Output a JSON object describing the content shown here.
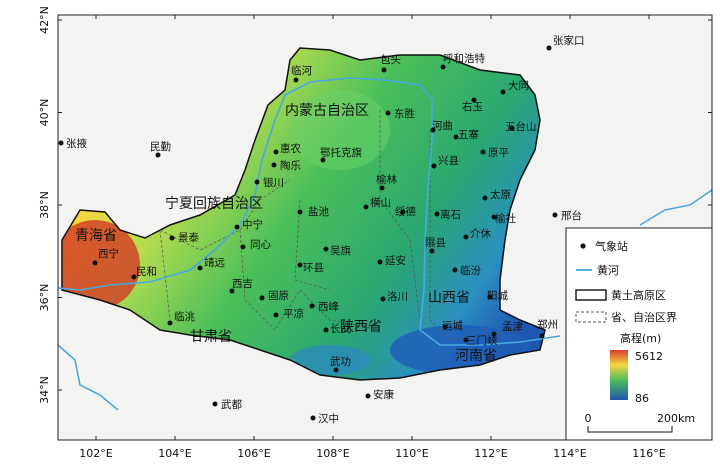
{
  "map": {
    "regions": [
      "内蒙古自治区",
      "宁夏回族自治区",
      "青海省",
      "甘肃省",
      "陕西省",
      "山西省",
      "河南省"
    ],
    "stations": [
      "张家口",
      "包头",
      "呼和浩特",
      "临河",
      "大同",
      "右玉",
      "东胜",
      "河曲",
      "五寨",
      "五台山",
      "张掖",
      "民勤",
      "惠农",
      "陶乐",
      "鄂托克旗",
      "兴县",
      "原平",
      "银川",
      "榆林",
      "太原",
      "盐池",
      "横山",
      "绥德",
      "离石",
      "榆社",
      "邢台",
      "中宁",
      "景泰",
      "同心",
      "吴旗",
      "隰县",
      "介休",
      "西宁",
      "民和",
      "靖远",
      "环县",
      "延安",
      "临汾",
      "西吉",
      "固原",
      "洛川",
      "阳城",
      "西峰",
      "平凉",
      "临洮",
      "长武",
      "运城",
      "孟津",
      "郑州",
      "三门峡",
      "武功",
      "安康",
      "武都",
      "汉中"
    ],
    "lon_labels": [
      "102°E",
      "104°E",
      "106°E",
      "108°E",
      "110°E",
      "112°E",
      "114°E",
      "116°E"
    ],
    "lat_labels": [
      "42°N",
      "40°N",
      "38°N",
      "36°N",
      "34°N"
    ],
    "legend": {
      "station": "气象站",
      "river": "黄河",
      "loess": "黄土高原区",
      "boundary": "省、自治区界",
      "elevation_title": "高程(m)",
      "elev_max": "5612",
      "elev_min": "86",
      "scale_start": "0",
      "scale_end": "200km"
    }
  }
}
